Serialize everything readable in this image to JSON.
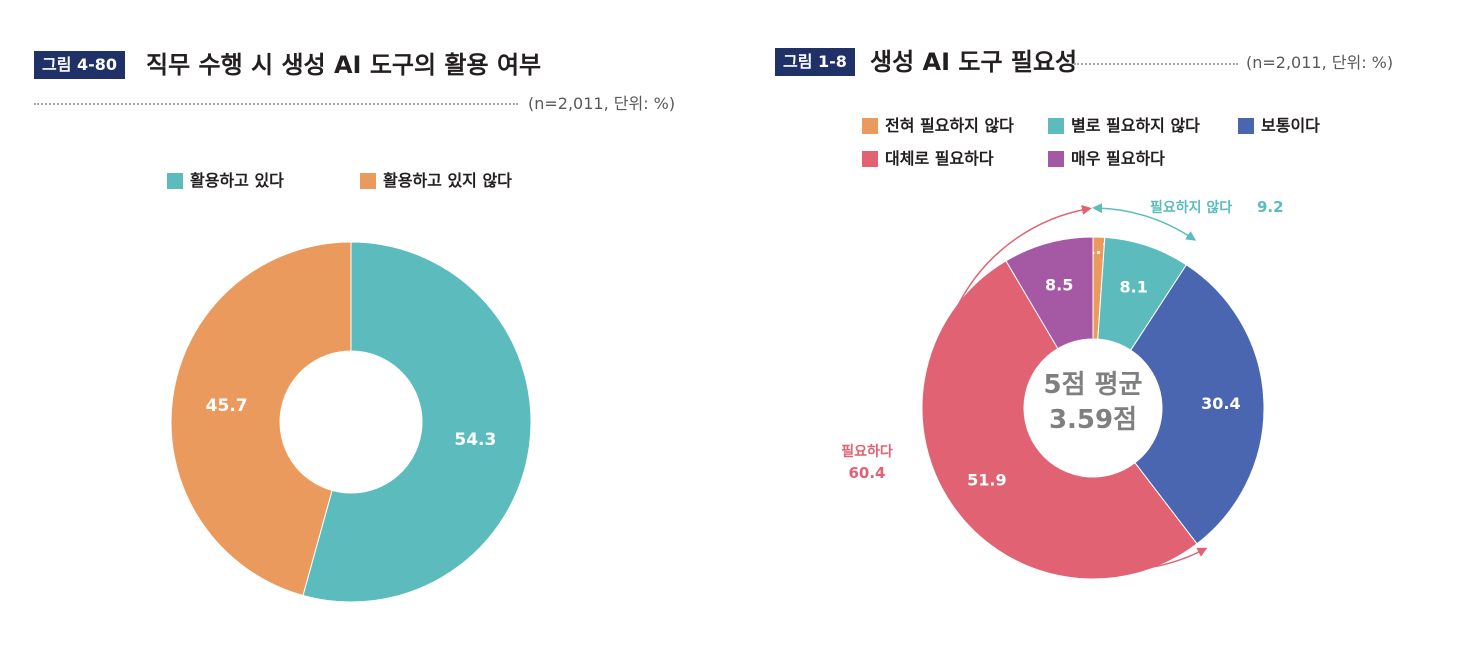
{
  "colors": {
    "badge_bg": "#1f3166",
    "teal": "#5cbcbd",
    "orange": "#e99a5c",
    "blue": "#4a66b0",
    "pink": "#e06273",
    "purple": "#a559a5"
  },
  "left_figure": {
    "badge": "그림 4-80",
    "title": "직무 수행 시 생성 AI 도구의 활용 여부",
    "unit": "(n=2,011, 단위: %)"
  },
  "right_figure": {
    "badge": "그림 1-8",
    "title": "생성 AI 도구 필요성",
    "unit": "(n=2,011, 단위: %)",
    "center_line1": "5점 평균",
    "center_line2": "3.59점",
    "bracket_unneeded_label": "필요하지 않다",
    "bracket_unneeded_value": "9.2",
    "bracket_needed_label": "필요하다",
    "bracket_needed_value": "60.4"
  },
  "chart_data": [
    {
      "type": "pie",
      "donut": true,
      "title": "직무 수행 시 생성 AI 도구의 활용 여부",
      "categories": [
        "활용하고 있다",
        "활용하고 있지 않다"
      ],
      "values": [
        54.3,
        45.7
      ],
      "colors": [
        "#5cbcbd",
        "#e99a5c"
      ],
      "legend_position": "top"
    },
    {
      "type": "pie",
      "donut": true,
      "title": "생성 AI 도구 필요성",
      "categories": [
        "전혀 필요하지 않다",
        "별로 필요하지 않다",
        "보통이다",
        "대체로 필요하다",
        "매우 필요하다"
      ],
      "values": [
        1.1,
        8.1,
        30.4,
        51.9,
        8.5
      ],
      "colors": [
        "#e99a5c",
        "#5cbcbd",
        "#4a66b0",
        "#e06273",
        "#a559a5"
      ],
      "legend_position": "top"
    }
  ]
}
